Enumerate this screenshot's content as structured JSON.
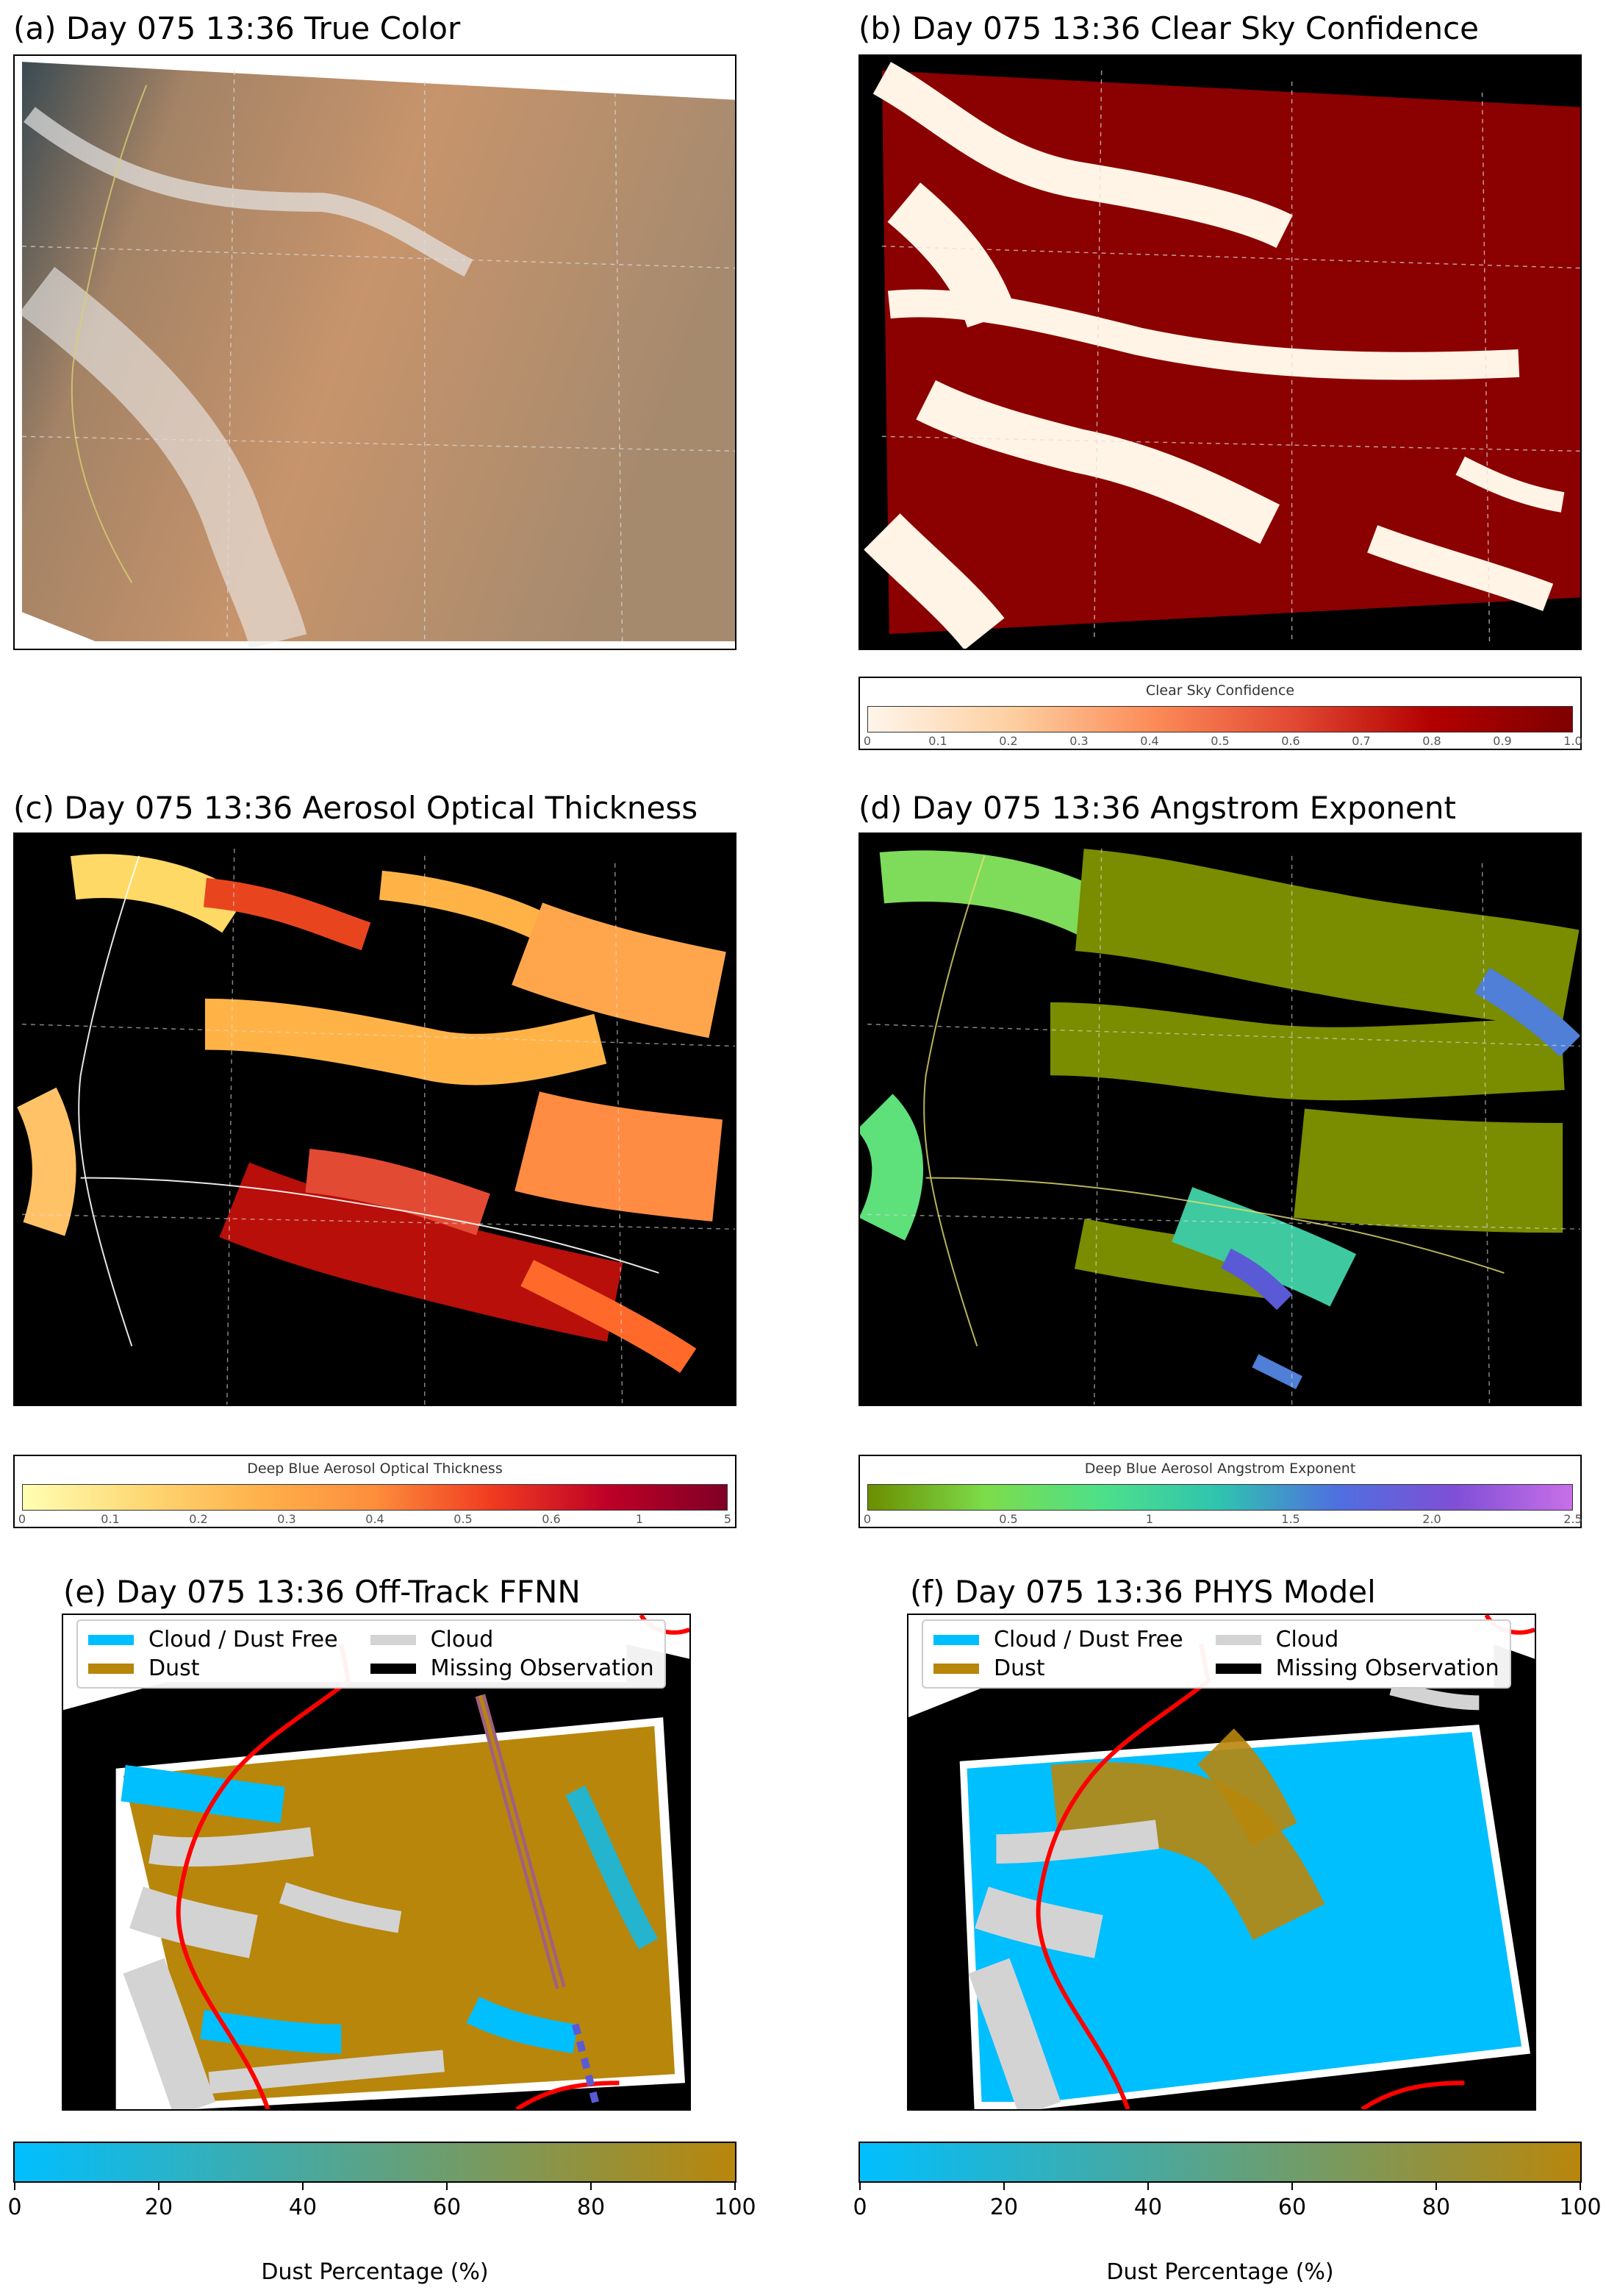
{
  "panels": {
    "a": {
      "title": "(a) Day 075 13:36 True Color"
    },
    "b": {
      "title": "(b) Day 075 13:36 Clear Sky Confidence"
    },
    "c": {
      "title": "(c) Day 075 13:36 Aerosol Optical Thickness"
    },
    "d": {
      "title": "(d) Day 075 13:36 Angstrom Exponent"
    },
    "e": {
      "title": "(e) Day 075 13:36 Off-Track FFNN"
    },
    "f": {
      "title": "(f) Day 075 13:36 PHYS Model"
    }
  },
  "colorbars": {
    "csc": {
      "title": "Clear Sky Confidence",
      "ticks": [
        "0",
        "0.1",
        "0.2",
        "0.3",
        "0.4",
        "0.5",
        "0.6",
        "0.7",
        "0.8",
        "0.9",
        "1.0"
      ]
    },
    "aot": {
      "title": "Deep Blue Aerosol Optical Thickness",
      "ticks": [
        "0",
        "0.1",
        "0.2",
        "0.3",
        "0.4",
        "0.5",
        "0.6",
        "1",
        "5"
      ]
    },
    "ae": {
      "title": "Deep Blue Aerosol Angstrom Exponent",
      "ticks": [
        "0",
        "0.5",
        "1",
        "1.5",
        "2.0",
        "2.5"
      ]
    },
    "dust": {
      "title": "Dust Percentage (%)",
      "ticks": [
        "0",
        "20",
        "40",
        "60",
        "80",
        "100"
      ]
    }
  },
  "legend": {
    "cloud_dust_free": "Cloud / Dust Free",
    "cloud": "Cloud",
    "dust": "Dust",
    "missing": "Missing Observation"
  },
  "colors": {
    "cloud_dust_free": "#00bfff",
    "dust": "#b8860b",
    "cloud": "#d3d3d3",
    "missing": "#000000",
    "coastline": "#ff0000"
  }
}
